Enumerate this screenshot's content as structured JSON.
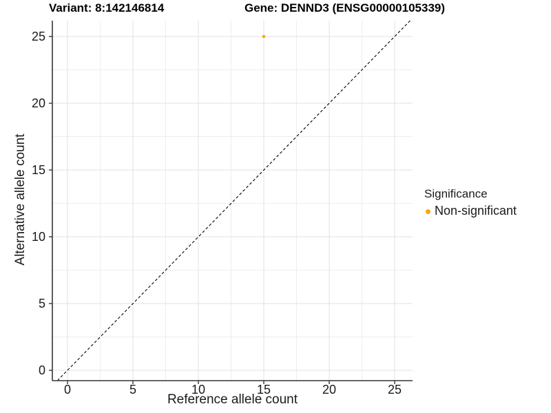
{
  "header": {
    "variant_title": "Variant: 8:142146814",
    "gene_title": "Gene: DENND3 (ENSG00000105339)"
  },
  "chart_data": {
    "type": "scatter",
    "xlabel": "Reference allele count",
    "ylabel": "Alternative allele count",
    "x_ticks": [
      0,
      5,
      10,
      15,
      20,
      25
    ],
    "y_ticks": [
      0,
      5,
      10,
      15,
      20,
      25
    ],
    "x_minor_ticks": [
      2.5,
      7.5,
      12.5,
      17.5,
      22.5
    ],
    "y_minor_ticks": [
      2.5,
      7.5,
      12.5,
      17.5,
      22.5
    ],
    "xlim": [
      -1.2,
      26.4
    ],
    "ylim": [
      -0.8,
      26.2
    ],
    "grid": "major+minor",
    "series": [
      {
        "name": "Non-significant",
        "color": "#FFA500",
        "points": [
          {
            "x": 15,
            "y": 25
          }
        ]
      }
    ],
    "reference_line": {
      "kind": "identity",
      "equation": "y = x",
      "style": "dashed",
      "color": "#000000"
    },
    "legend": {
      "title": "Significance",
      "position": "right",
      "items": [
        {
          "label": "Non-significant",
          "color": "#FFA500"
        }
      ]
    }
  },
  "colors": {
    "background": "#ffffff",
    "grid_major": "#e2e2e2",
    "grid_minor": "#ededed",
    "axis_line": "#343434",
    "tick_text": "#1a1a1a",
    "point": "#FFA500"
  }
}
